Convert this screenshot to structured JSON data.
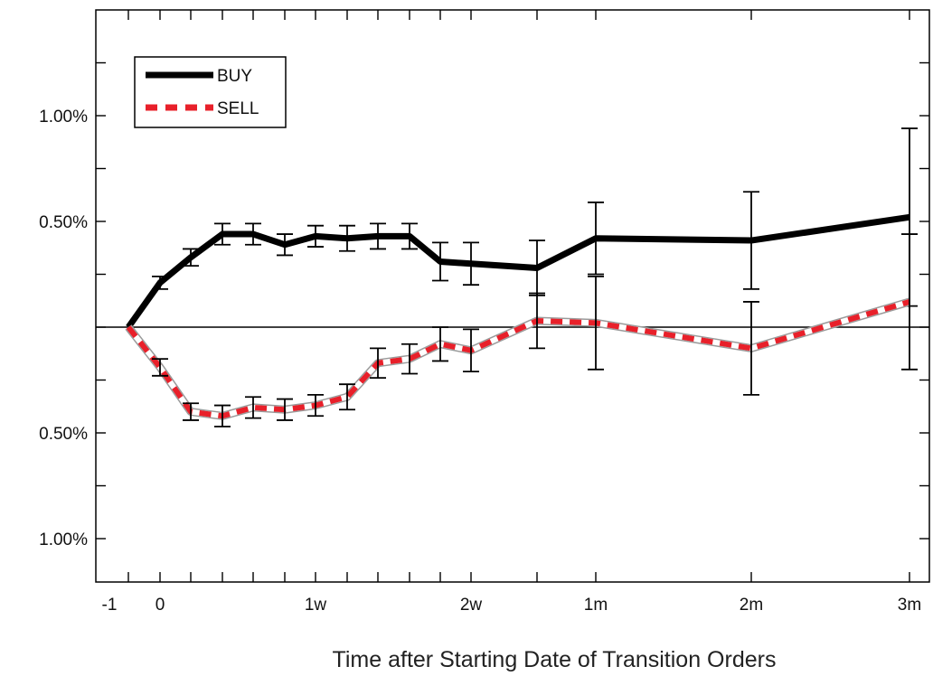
{
  "chart_data": {
    "type": "line",
    "xlabel": "Time after Starting Date of Transition Orders",
    "ylabel": "",
    "x_tick_labels": [
      "-1",
      "0",
      "1w",
      "2w",
      "1m",
      "2m",
      "3m"
    ],
    "y_tick_labels": [
      "1.00%",
      "0.50%",
      "0.50%",
      "1.00%"
    ],
    "ylim": [
      -1.2,
      1.5
    ],
    "grid": false,
    "legend_position": "top-left",
    "series": [
      {
        "name": "BUY",
        "style": "solid",
        "color": "#000000",
        "points": [
          {
            "x": "-1",
            "y": 0.0,
            "err": null
          },
          {
            "x": "0",
            "y": 0.21,
            "err": 0.03
          },
          {
            "x": "1d",
            "y": 0.33,
            "err": 0.04
          },
          {
            "x": "2d",
            "y": 0.44,
            "err": 0.05
          },
          {
            "x": "3d",
            "y": 0.44,
            "err": 0.05
          },
          {
            "x": "4d",
            "y": 0.39,
            "err": 0.05
          },
          {
            "x": "1w",
            "y": 0.43,
            "err": 0.05
          },
          {
            "x": "6d",
            "y": 0.42,
            "err": 0.06
          },
          {
            "x": "7d",
            "y": 0.43,
            "err": 0.06
          },
          {
            "x": "8d",
            "y": 0.43,
            "err": 0.06
          },
          {
            "x": "9d",
            "y": 0.31,
            "err": 0.09
          },
          {
            "x": "2w",
            "y": 0.3,
            "err": 0.1
          },
          {
            "x": "3w",
            "y": 0.28,
            "err": 0.13
          },
          {
            "x": "1m",
            "y": 0.42,
            "err": 0.17
          },
          {
            "x": "2m",
            "y": 0.41,
            "err": 0.23
          },
          {
            "x": "3m",
            "y": 0.52,
            "err": 0.42
          }
        ]
      },
      {
        "name": "SELL",
        "style": "dashed",
        "color": "#e8202a",
        "points": [
          {
            "x": "-1",
            "y": 0.0,
            "err": null
          },
          {
            "x": "0",
            "y": -0.19,
            "err": 0.04
          },
          {
            "x": "1d",
            "y": -0.4,
            "err": 0.04
          },
          {
            "x": "2d",
            "y": -0.42,
            "err": 0.05
          },
          {
            "x": "3d",
            "y": -0.38,
            "err": 0.05
          },
          {
            "x": "4d",
            "y": -0.39,
            "err": 0.05
          },
          {
            "x": "1w",
            "y": -0.37,
            "err": 0.05
          },
          {
            "x": "6d",
            "y": -0.33,
            "err": 0.06
          },
          {
            "x": "7d",
            "y": -0.17,
            "err": 0.07
          },
          {
            "x": "8d",
            "y": -0.15,
            "err": 0.07
          },
          {
            "x": "9d",
            "y": -0.08,
            "err": 0.08
          },
          {
            "x": "2w",
            "y": -0.11,
            "err": 0.1
          },
          {
            "x": "3w",
            "y": 0.03,
            "err": 0.13
          },
          {
            "x": "1m",
            "y": 0.02,
            "err": 0.22
          },
          {
            "x": "2m",
            "y": -0.1,
            "err": 0.22
          },
          {
            "x": "3m",
            "y": 0.12,
            "err": 0.32
          }
        ]
      }
    ]
  }
}
